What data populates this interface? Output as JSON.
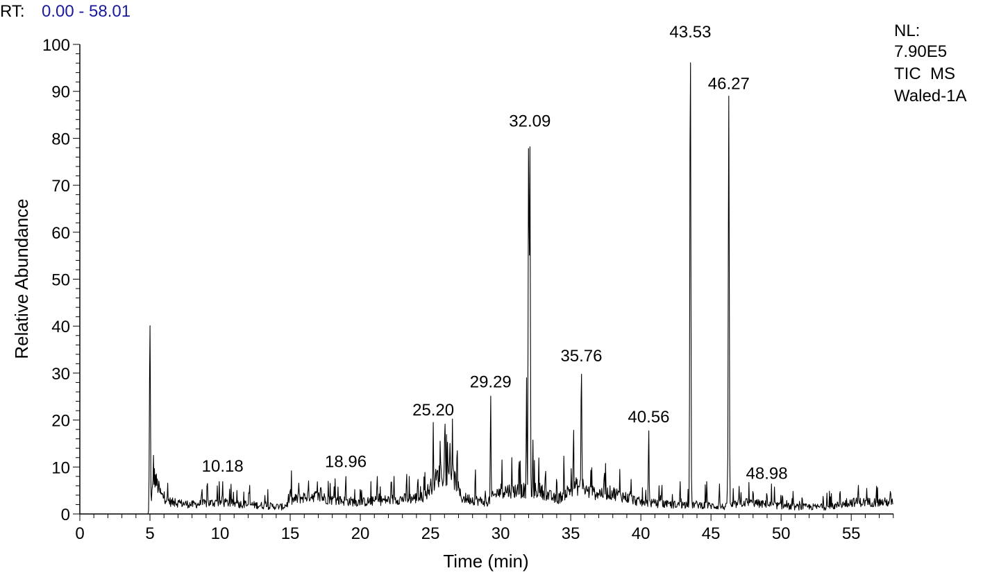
{
  "header": {
    "rt_prefix": "RT:",
    "rt_range": "0.00 - 58.01",
    "rt_range_color": "#1a1aa0"
  },
  "info": {
    "nl_label": "NL:",
    "nl_value": "7.90E5",
    "scan_type": "TIC  MS",
    "sample": "Waled-1A"
  },
  "chart_data": {
    "type": "line",
    "title": "",
    "xlabel": "Time (min)",
    "ylabel": "Relative Abundance",
    "xlim": [
      0,
      58.01
    ],
    "ylim": [
      0,
      100
    ],
    "x_ticks": [
      0,
      5,
      10,
      15,
      20,
      25,
      30,
      35,
      40,
      45,
      50,
      55
    ],
    "y_ticks": [
      0,
      10,
      20,
      30,
      40,
      50,
      60,
      70,
      80,
      90,
      100
    ],
    "line_color": "#000000",
    "peak_annotations": [
      {
        "x": 10.18,
        "y": 7.5,
        "label": "10.18"
      },
      {
        "x": 18.96,
        "y": 8.5,
        "label": "18.96"
      },
      {
        "x": 25.2,
        "y": 19.5,
        "label": "25.20"
      },
      {
        "x": 29.29,
        "y": 25.5,
        "label": "29.29"
      },
      {
        "x": 32.09,
        "y": 81,
        "label": "32.09"
      },
      {
        "x": 35.76,
        "y": 31,
        "label": "35.76"
      },
      {
        "x": 40.56,
        "y": 18,
        "label": "40.56"
      },
      {
        "x": 43.53,
        "y": 100,
        "label": "43.53"
      },
      {
        "x": 46.27,
        "y": 89,
        "label": "46.27"
      },
      {
        "x": 48.98,
        "y": 6,
        "label": "48.98"
      }
    ],
    "peaks": [
      {
        "x": 5.0,
        "y": 40.5
      },
      {
        "x": 5.25,
        "y": 12.5
      },
      {
        "x": 6.8,
        "y": 3.5
      },
      {
        "x": 8.7,
        "y": 5.5
      },
      {
        "x": 9.1,
        "y": 6.5
      },
      {
        "x": 9.8,
        "y": 6.0
      },
      {
        "x": 10.18,
        "y": 7.0
      },
      {
        "x": 11.2,
        "y": 5.0
      },
      {
        "x": 12.1,
        "y": 6.5
      },
      {
        "x": 13.2,
        "y": 4.0
      },
      {
        "x": 15.0,
        "y": 6.0
      },
      {
        "x": 15.6,
        "y": 7.0
      },
      {
        "x": 16.3,
        "y": 7.5
      },
      {
        "x": 17.2,
        "y": 6.5
      },
      {
        "x": 18.2,
        "y": 7.5
      },
      {
        "x": 18.96,
        "y": 8.5
      },
      {
        "x": 20.0,
        "y": 6.0
      },
      {
        "x": 21.2,
        "y": 8.5
      },
      {
        "x": 22.4,
        "y": 8.0
      },
      {
        "x": 23.3,
        "y": 9.0
      },
      {
        "x": 24.1,
        "y": 8.5
      },
      {
        "x": 24.6,
        "y": 9.0
      },
      {
        "x": 25.2,
        "y": 19.5
      },
      {
        "x": 25.7,
        "y": 16.5
      },
      {
        "x": 26.0,
        "y": 16.5
      },
      {
        "x": 26.4,
        "y": 16.0
      },
      {
        "x": 26.9,
        "y": 15.5
      },
      {
        "x": 28.2,
        "y": 10.0
      },
      {
        "x": 29.29,
        "y": 25.5
      },
      {
        "x": 30.1,
        "y": 11.5
      },
      {
        "x": 30.8,
        "y": 12.0
      },
      {
        "x": 31.4,
        "y": 11.5
      },
      {
        "x": 31.85,
        "y": 29.0
      },
      {
        "x": 32.0,
        "y": 81.0
      },
      {
        "x": 32.09,
        "y": 79.0
      },
      {
        "x": 32.3,
        "y": 16.0
      },
      {
        "x": 33.2,
        "y": 10.0
      },
      {
        "x": 34.0,
        "y": 8.5
      },
      {
        "x": 35.2,
        "y": 19.0
      },
      {
        "x": 35.76,
        "y": 31.0
      },
      {
        "x": 36.5,
        "y": 10.0
      },
      {
        "x": 37.4,
        "y": 10.0
      },
      {
        "x": 38.5,
        "y": 9.5
      },
      {
        "x": 39.3,
        "y": 7.5
      },
      {
        "x": 40.56,
        "y": 18.0
      },
      {
        "x": 41.5,
        "y": 6.5
      },
      {
        "x": 42.8,
        "y": 7.0
      },
      {
        "x": 43.53,
        "y": 100.0
      },
      {
        "x": 44.7,
        "y": 7.0
      },
      {
        "x": 45.6,
        "y": 6.5
      },
      {
        "x": 46.27,
        "y": 89.0
      },
      {
        "x": 47.0,
        "y": 6.0
      },
      {
        "x": 48.0,
        "y": 5.5
      },
      {
        "x": 48.98,
        "y": 5.0
      },
      {
        "x": 50.1,
        "y": 4.5
      },
      {
        "x": 51.5,
        "y": 4.0
      },
      {
        "x": 53.0,
        "y": 4.0
      },
      {
        "x": 54.2,
        "y": 5.5
      },
      {
        "x": 55.5,
        "y": 6.5
      },
      {
        "x": 56.8,
        "y": 6.0
      },
      {
        "x": 57.8,
        "y": 5.5
      }
    ],
    "baseline": [
      {
        "x": 0.0,
        "y": 0.0
      },
      {
        "x": 4.95,
        "y": 0.0
      },
      {
        "x": 5.3,
        "y": 8.0
      },
      {
        "x": 5.8,
        "y": 4.0
      },
      {
        "x": 6.5,
        "y": 2.5
      },
      {
        "x": 8.0,
        "y": 2.0
      },
      {
        "x": 10.0,
        "y": 2.5
      },
      {
        "x": 12.0,
        "y": 2.0
      },
      {
        "x": 14.5,
        "y": 1.5
      },
      {
        "x": 15.2,
        "y": 3.0
      },
      {
        "x": 16.5,
        "y": 4.0
      },
      {
        "x": 18.0,
        "y": 3.0
      },
      {
        "x": 20.0,
        "y": 2.5
      },
      {
        "x": 22.0,
        "y": 3.0
      },
      {
        "x": 24.5,
        "y": 3.5
      },
      {
        "x": 25.5,
        "y": 8.0
      },
      {
        "x": 26.5,
        "y": 9.0
      },
      {
        "x": 27.2,
        "y": 3.5
      },
      {
        "x": 29.0,
        "y": 2.5
      },
      {
        "x": 30.0,
        "y": 5.0
      },
      {
        "x": 31.5,
        "y": 5.0
      },
      {
        "x": 32.8,
        "y": 5.0
      },
      {
        "x": 34.0,
        "y": 3.0
      },
      {
        "x": 35.3,
        "y": 6.0
      },
      {
        "x": 36.5,
        "y": 4.5
      },
      {
        "x": 38.0,
        "y": 4.5
      },
      {
        "x": 40.0,
        "y": 2.5
      },
      {
        "x": 42.0,
        "y": 2.0
      },
      {
        "x": 44.0,
        "y": 2.0
      },
      {
        "x": 46.0,
        "y": 1.5
      },
      {
        "x": 47.5,
        "y": 2.5
      },
      {
        "x": 49.0,
        "y": 2.0
      },
      {
        "x": 51.0,
        "y": 1.5
      },
      {
        "x": 53.5,
        "y": 1.5
      },
      {
        "x": 55.0,
        "y": 2.5
      },
      {
        "x": 58.0,
        "y": 2.5
      }
    ],
    "grid": false,
    "legend": "none"
  }
}
